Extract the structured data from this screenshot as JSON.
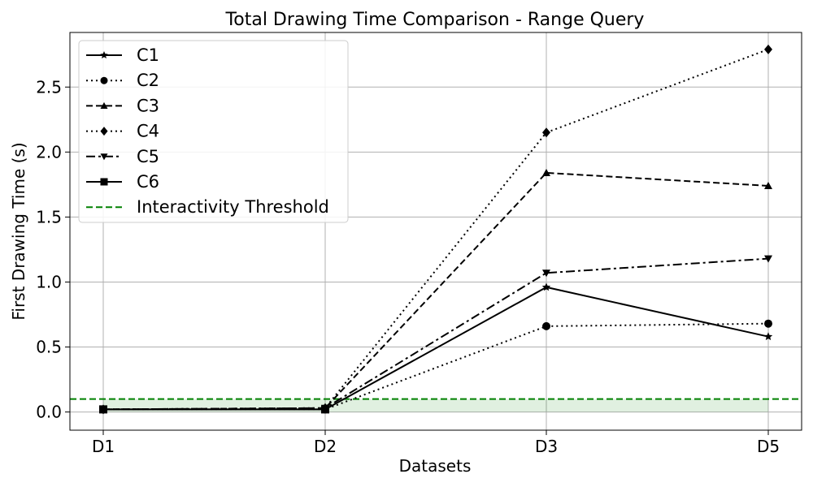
{
  "chart_data": {
    "type": "line",
    "title": "Total Drawing Time Comparison - Range Query",
    "xlabel": "Datasets",
    "ylabel": "First Drawing Time (s)",
    "categories": [
      "D1",
      "D2",
      "D3",
      "D5"
    ],
    "ylim": [
      -0.14,
      2.92
    ],
    "yticks": [
      0.0,
      0.5,
      1.0,
      1.5,
      2.0,
      2.5
    ],
    "ytick_labels": [
      "0.0",
      "0.5",
      "1.0",
      "1.5",
      "2.0",
      "2.5"
    ],
    "grid": true,
    "legend_position": "top-left",
    "series": [
      {
        "name": "C1",
        "values": [
          0.02,
          0.02,
          0.96,
          0.58
        ],
        "linestyle": "solid",
        "marker": "star",
        "color": "#000000"
      },
      {
        "name": "C2",
        "values": [
          0.02,
          0.02,
          0.66,
          0.68
        ],
        "linestyle": "dotted",
        "marker": "circle",
        "color": "#000000"
      },
      {
        "name": "C3",
        "values": [
          0.02,
          0.03,
          1.84,
          1.74
        ],
        "linestyle": "dashed",
        "marker": "triangle-up",
        "color": "#000000"
      },
      {
        "name": "C4",
        "values": [
          0.02,
          0.03,
          2.15,
          2.79
        ],
        "linestyle": "dotted",
        "marker": "diamond",
        "color": "#000000"
      },
      {
        "name": "C5",
        "values": [
          0.02,
          0.03,
          1.07,
          1.18
        ],
        "linestyle": "dashdot",
        "marker": "triangle-down",
        "color": "#000000"
      },
      {
        "name": "C6",
        "values": [
          0.02,
          0.02,
          null,
          null
        ],
        "linestyle": "solid",
        "marker": "square",
        "color": "#000000"
      }
    ],
    "threshold": {
      "name": "Interactivity Threshold",
      "value": 0.1,
      "color": "#008000",
      "linestyle": "dashed",
      "fill_color": "#008000"
    }
  }
}
